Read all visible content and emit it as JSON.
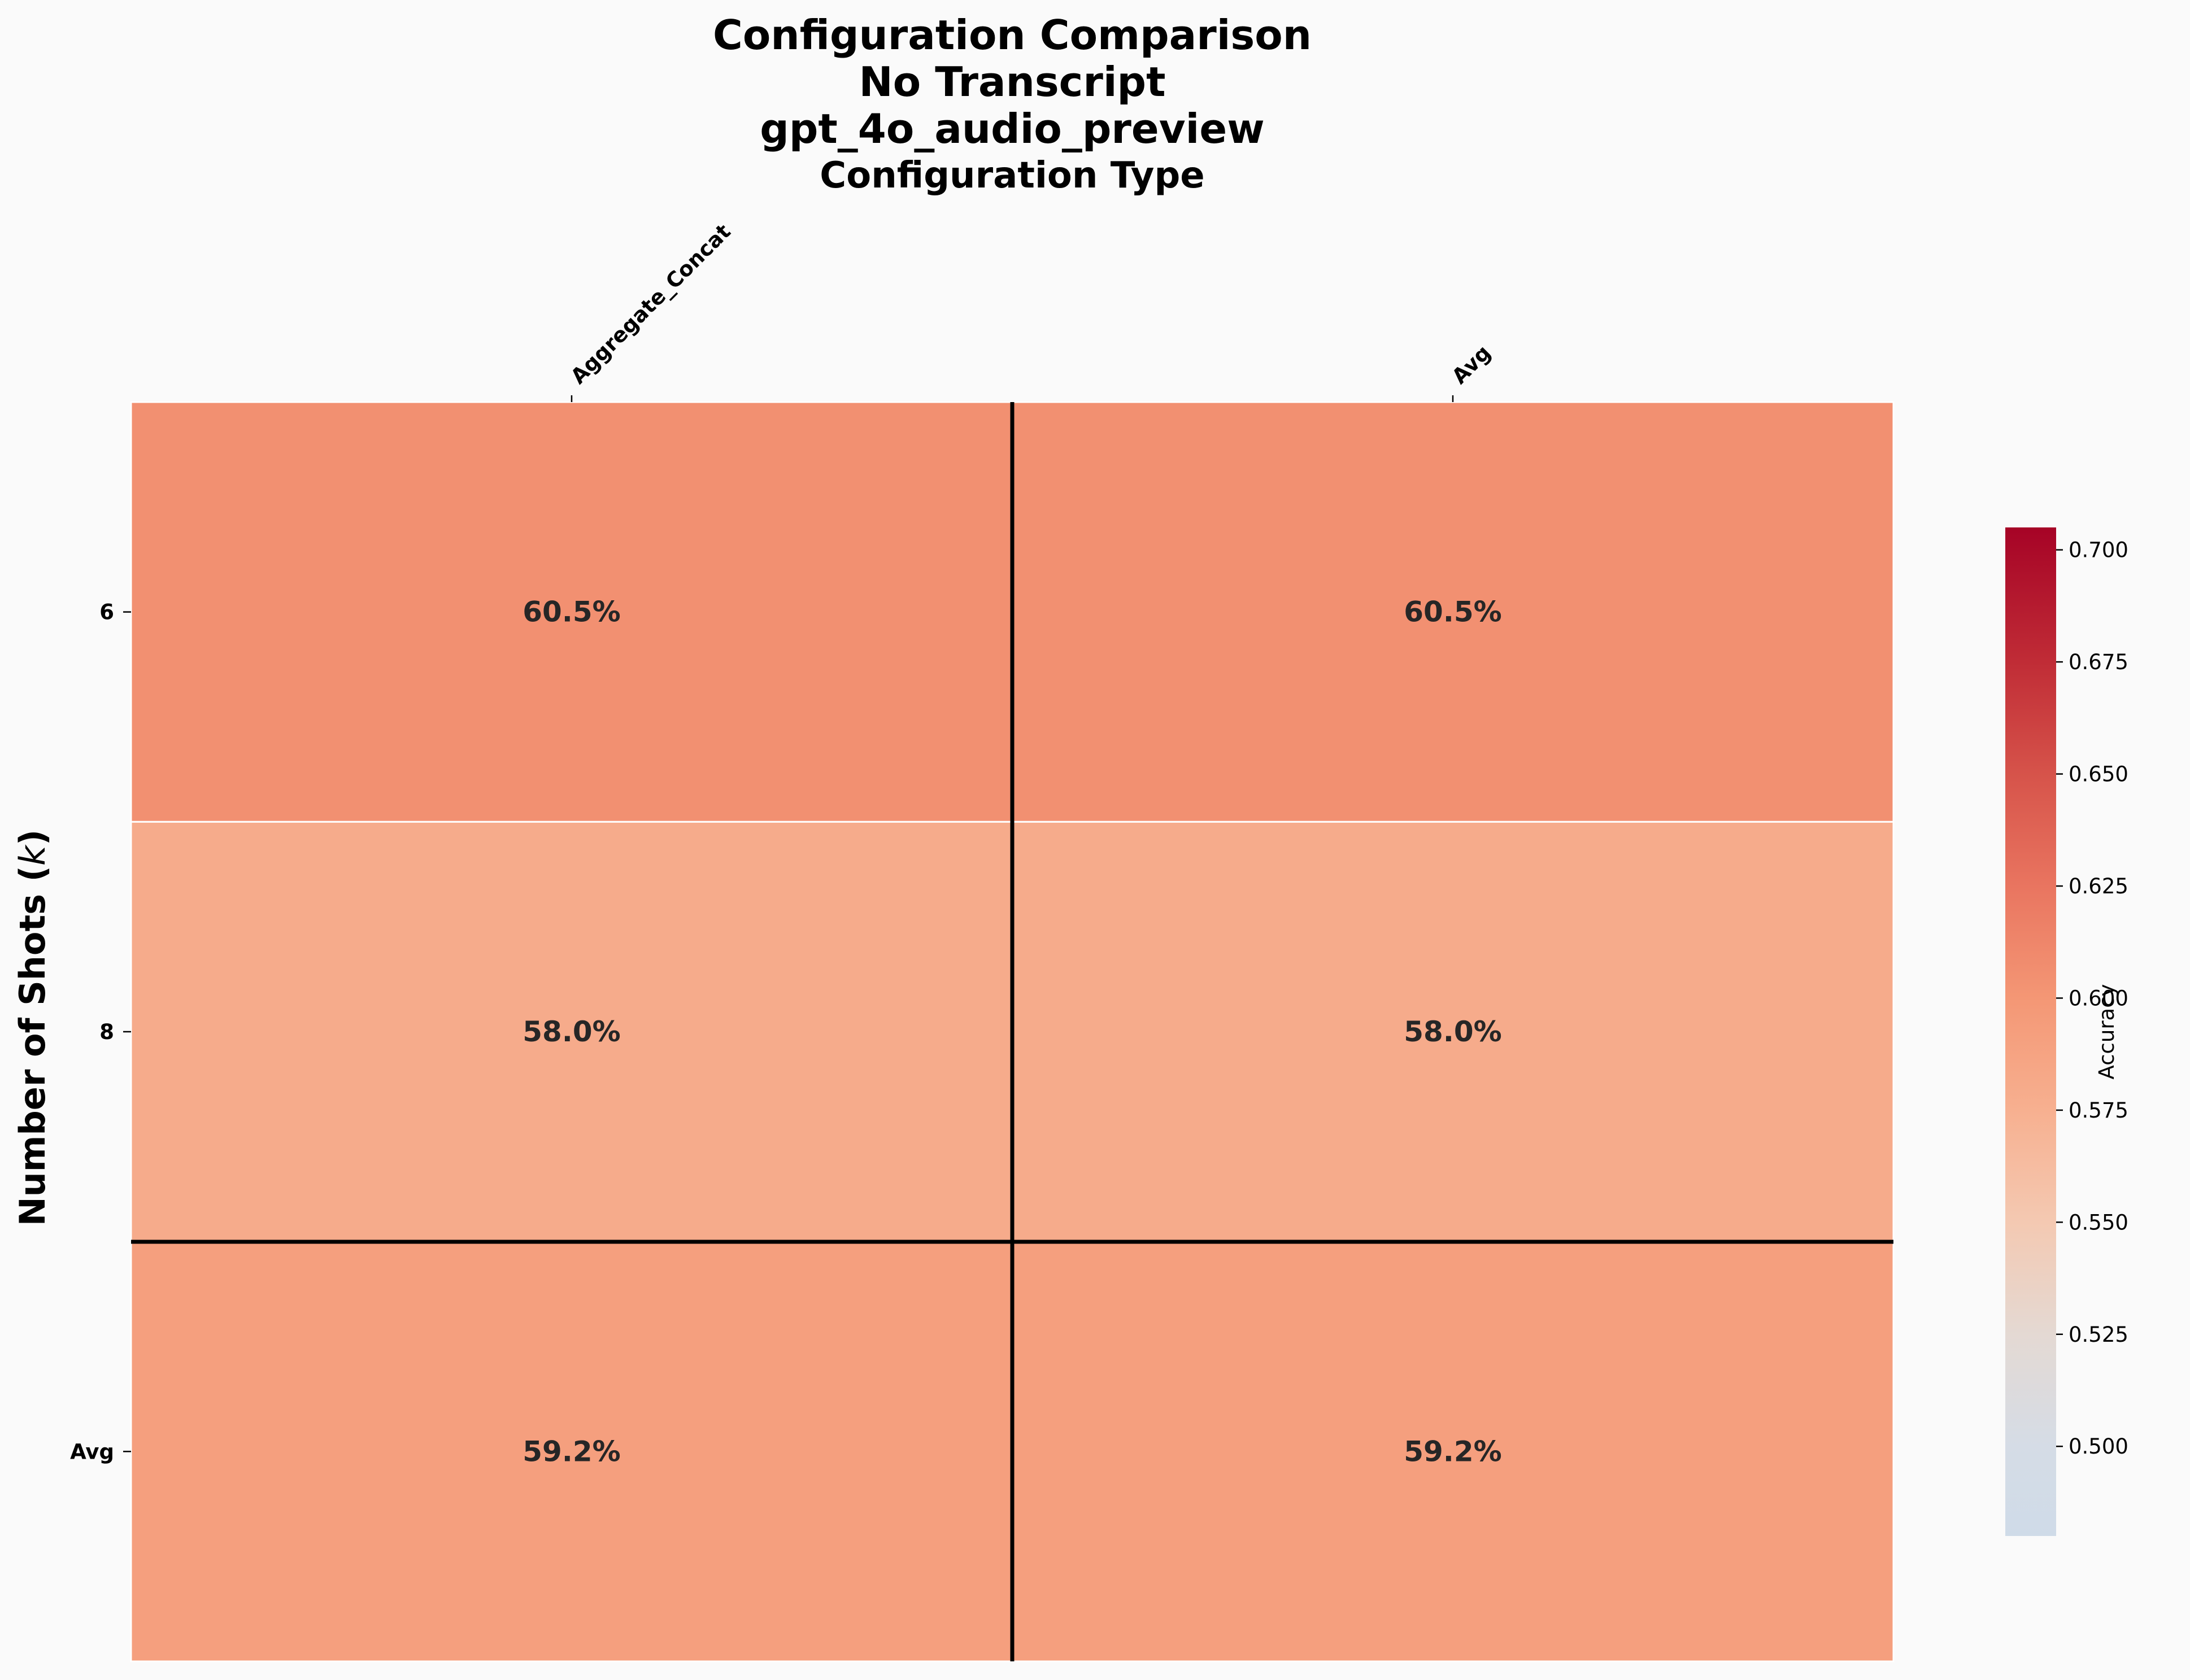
{
  "chart_data": {
    "type": "heatmap",
    "title_lines": [
      "Configuration Comparison",
      "No Transcript",
      "gpt_4o_audio_preview"
    ],
    "xlabel": "Configuration Type",
    "ylabel": "Number of Shots ($k$)",
    "columns": [
      "Aggregate_Concat",
      "Avg"
    ],
    "rows": [
      "6",
      "8",
      "Avg"
    ],
    "values": [
      [
        0.605,
        0.605
      ],
      [
        0.58,
        0.58
      ],
      [
        0.592,
        0.592
      ]
    ],
    "cell_labels": [
      [
        "60.5%",
        "60.5%"
      ],
      [
        "58.0%",
        "58.0%"
      ],
      [
        "59.2%",
        "59.2%"
      ]
    ],
    "colormap": "RdBu_r",
    "colorbar": {
      "label": "Accuracy",
      "range": [
        0.48,
        0.705
      ],
      "ticks": [
        "0.500",
        "0.525",
        "0.550",
        "0.575",
        "0.600",
        "0.625",
        "0.650",
        "0.675",
        "0.700"
      ]
    }
  }
}
